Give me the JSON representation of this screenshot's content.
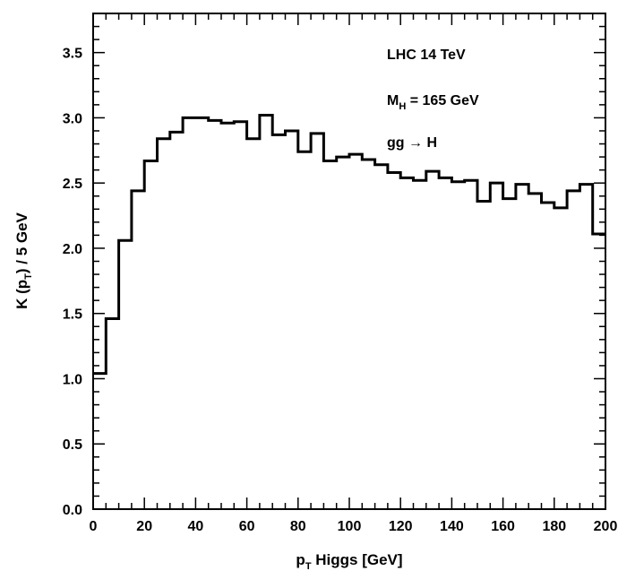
{
  "chart_data": {
    "type": "line",
    "style": "histogram-step",
    "bin_width": 5,
    "xlim": [
      0,
      200
    ],
    "ylim": [
      0.0,
      3.8
    ],
    "x_ticks": [
      "0",
      "20",
      "40",
      "60",
      "80",
      "100",
      "120",
      "140",
      "160",
      "180",
      "200"
    ],
    "y_ticks": [
      "0.0",
      "0.5",
      "1.0",
      "1.5",
      "2.0",
      "2.5",
      "3.0",
      "3.5"
    ],
    "xlabel": {
      "main": "p",
      "sub": "T",
      "rest": " Higgs [GeV]"
    },
    "ylabel": {
      "pre": "K (p",
      "sub": "T",
      "post": ")  / 5 GeV"
    },
    "annotations": [
      {
        "main": "LHC 14 TeV"
      },
      {
        "main": "M",
        "sub": "H",
        "rest": " = 165 GeV"
      },
      {
        "main": "gg ",
        "arrow": "→",
        "rest": " H"
      }
    ],
    "bin_edges": [
      0,
      5,
      10,
      15,
      20,
      25,
      30,
      35,
      40,
      45,
      50,
      55,
      60,
      65,
      70,
      75,
      80,
      85,
      90,
      95,
      100,
      105,
      110,
      115,
      120,
      125,
      130,
      135,
      140,
      145,
      150,
      155,
      160,
      165,
      170,
      175,
      180,
      185,
      190,
      195,
      200
    ],
    "values": [
      1.04,
      1.46,
      2.06,
      2.44,
      2.67,
      2.84,
      2.89,
      3.0,
      3.0,
      2.98,
      2.96,
      2.97,
      2.84,
      3.02,
      2.87,
      2.9,
      2.74,
      2.88,
      2.67,
      2.7,
      2.72,
      2.68,
      2.64,
      2.58,
      2.54,
      2.52,
      2.59,
      2.54,
      2.51,
      2.52,
      2.36,
      2.5,
      2.38,
      2.49,
      2.42,
      2.35,
      2.31,
      2.44,
      2.49,
      2.11
    ],
    "grid": false,
    "color": "#000000"
  }
}
